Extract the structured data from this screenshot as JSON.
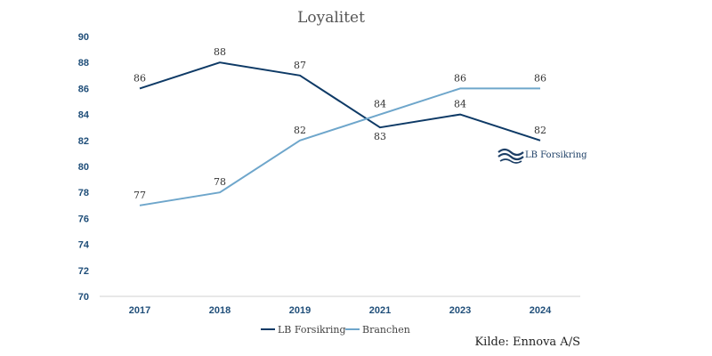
{
  "chart_data": {
    "type": "line",
    "title": "Loyalitet",
    "categories": [
      "2017",
      "2018",
      "2019",
      "2021",
      "2023",
      "2024"
    ],
    "ylim": [
      70,
      90
    ],
    "yticks": [
      70,
      72,
      74,
      76,
      78,
      80,
      82,
      84,
      86,
      88,
      90
    ],
    "grid": false,
    "legend_position": "bottom",
    "series": [
      {
        "name": "LB Forsikring",
        "color": "#0e3a66",
        "values": [
          86,
          88,
          87,
          83,
          84,
          82
        ],
        "label_pos": [
          "above",
          "above",
          "above",
          "below",
          "above",
          "above"
        ]
      },
      {
        "name": "Branchen",
        "color": "#6ea6cb",
        "values": [
          77,
          78,
          82,
          84,
          86,
          86
        ],
        "label_pos": [
          "above",
          "above",
          "above",
          "above",
          "above",
          "above"
        ]
      }
    ]
  },
  "source": "Kilde: Ennova A/S",
  "logo": {
    "text": "LB Forsikring",
    "icon": "lb-forsikring-wave-logo"
  }
}
